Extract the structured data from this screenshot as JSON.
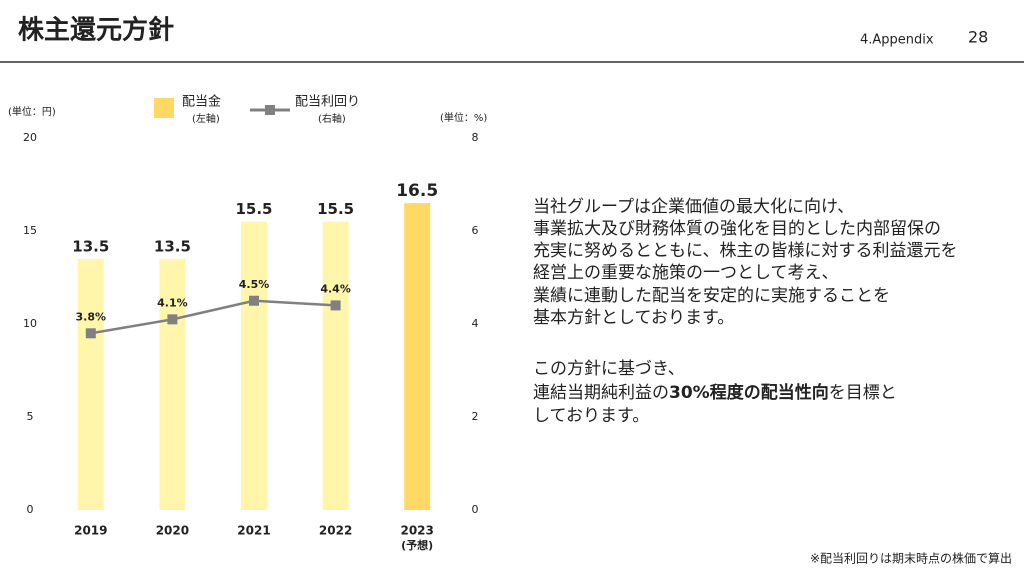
{
  "header": {
    "title": "株主還元方針",
    "section": "4.Appendix",
    "page": "28"
  },
  "chart_data": {
    "type": "bar",
    "left_unit": "(単位：円)",
    "right_unit": "(単位：%)",
    "categories": [
      "2019",
      "2020",
      "2021",
      "2022",
      "2023"
    ],
    "category_notes": [
      null,
      null,
      null,
      null,
      "(予想)"
    ],
    "series": [
      {
        "name": "配当金",
        "legend_note": "(左軸)",
        "color": "#ffd966",
        "colors": [
          "#fff6ac",
          "#fff6ac",
          "#fff6ac",
          "#fff6ac",
          "#ffd966"
        ],
        "values": [
          13.5,
          13.5,
          15.5,
          15.5,
          16.5
        ]
      },
      {
        "name": "配当利回り",
        "legend_note": "(右軸)",
        "type": "line",
        "axis": "y2",
        "color": "#808080",
        "values": [
          3.8,
          4.1,
          4.5,
          4.4,
          null
        ],
        "value_labels": [
          "3.8%",
          "4.1%",
          "4.5%",
          "4.4%",
          null
        ]
      }
    ],
    "ylim": [
      0,
      20
    ],
    "yticks": [
      0,
      5,
      10,
      15,
      20
    ],
    "y2lim": [
      0,
      8
    ],
    "y2ticks": [
      0,
      2,
      4,
      6,
      8
    ],
    "grid": false
  },
  "body": {
    "paragraph1": [
      "当社グループは企業価値の最大化に向け、",
      "事業拡大及び財務体質の強化を目的とした内部留保の",
      "充実に努めるとともに、株主の皆様に対する利益還元を",
      "経営上の重要な施策の一つとして考え、",
      "業績に連動した配当を安定的に実施することを",
      "基本方針としております。"
    ],
    "paragraph2": {
      "line1": "この方針に基づき、",
      "line2_pre": "連結当期純利益の",
      "line2_bold": "30%程度の配当性向",
      "line2_post": "を目標と",
      "line3": "しております。"
    }
  },
  "footnote": "※配当利回りは期末時点の株価で算出"
}
